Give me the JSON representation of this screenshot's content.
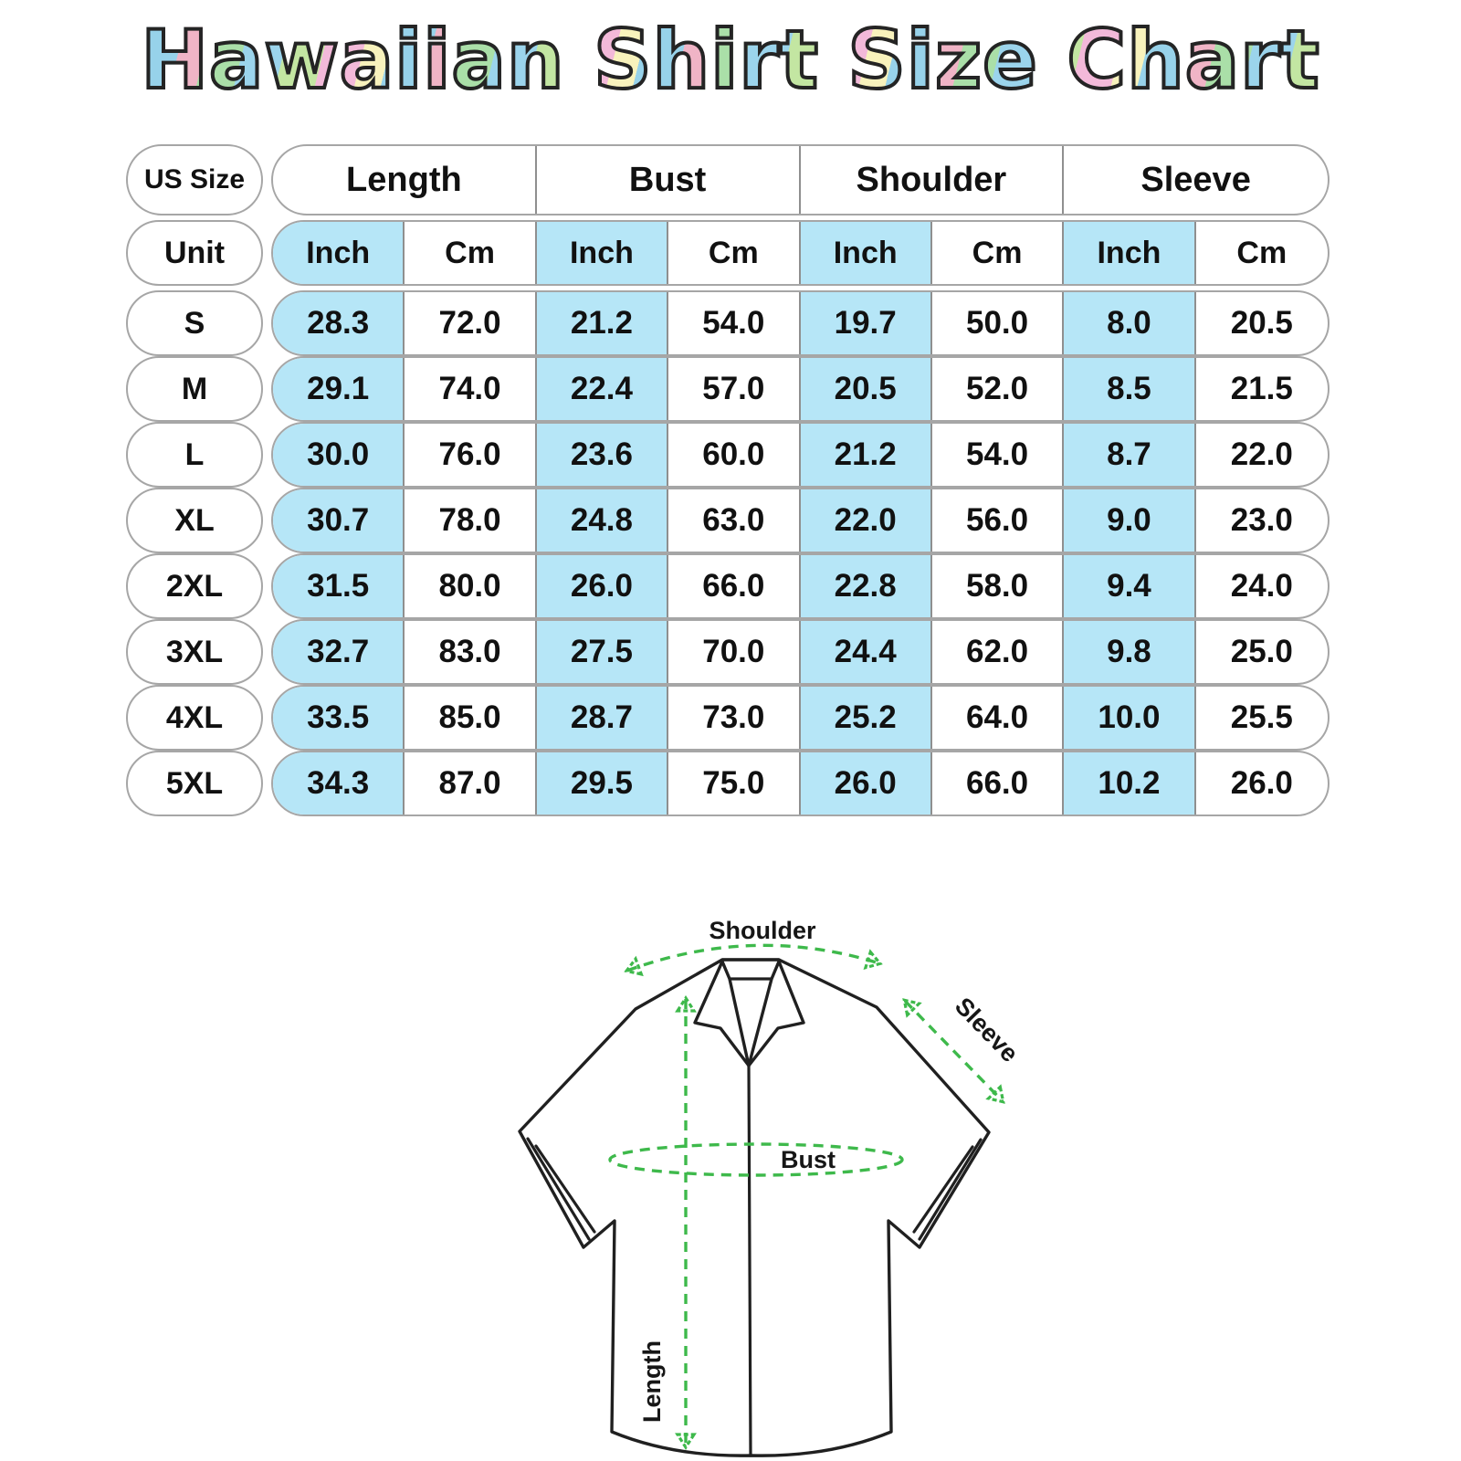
{
  "chart_data": {
    "type": "table",
    "title": "Hawaiian Shirt Size Chart",
    "corner_label": "US Size",
    "unit_row_label": "Unit",
    "groups": [
      "Length",
      "Bust",
      "Shoulder",
      "Sleeve"
    ],
    "unit_headers": [
      "Inch",
      "Cm",
      "Inch",
      "Cm",
      "Inch",
      "Cm",
      "Inch",
      "Cm"
    ],
    "rows": [
      {
        "size": "S",
        "values": [
          "28.3",
          "72.0",
          "21.2",
          "54.0",
          "19.7",
          "50.0",
          "8.0",
          "20.5"
        ]
      },
      {
        "size": "M",
        "values": [
          "29.1",
          "74.0",
          "22.4",
          "57.0",
          "20.5",
          "52.0",
          "8.5",
          "21.5"
        ]
      },
      {
        "size": "L",
        "values": [
          "30.0",
          "76.0",
          "23.6",
          "60.0",
          "21.2",
          "54.0",
          "8.7",
          "22.0"
        ]
      },
      {
        "size": "XL",
        "values": [
          "30.7",
          "78.0",
          "24.8",
          "63.0",
          "22.0",
          "56.0",
          "9.0",
          "23.0"
        ]
      },
      {
        "size": "2XL",
        "values": [
          "31.5",
          "80.0",
          "26.0",
          "66.0",
          "22.8",
          "58.0",
          "9.4",
          "24.0"
        ]
      },
      {
        "size": "3XL",
        "values": [
          "32.7",
          "83.0",
          "27.5",
          "70.0",
          "24.4",
          "62.0",
          "9.8",
          "25.0"
        ]
      },
      {
        "size": "4XL",
        "values": [
          "33.5",
          "85.0",
          "28.7",
          "73.0",
          "25.2",
          "64.0",
          "10.0",
          "25.5"
        ]
      },
      {
        "size": "5XL",
        "values": [
          "34.3",
          "87.0",
          "29.5",
          "75.0",
          "26.0",
          "66.0",
          "10.2",
          "26.0"
        ]
      }
    ]
  },
  "diagram": {
    "labels": {
      "shoulder": "Shoulder",
      "sleeve": "Sleeve",
      "bust": "Bust",
      "length": "Length"
    }
  },
  "colors": {
    "inch_highlight": "#b6e6f7",
    "arrow_green": "#3eb94b",
    "outline_dark": "#202020"
  }
}
